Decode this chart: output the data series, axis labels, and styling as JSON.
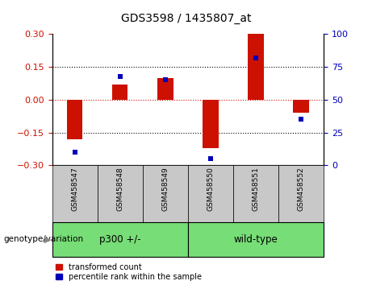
{
  "title": "GDS3598 / 1435807_at",
  "samples": [
    "GSM458547",
    "GSM458548",
    "GSM458549",
    "GSM458550",
    "GSM458551",
    "GSM458552"
  ],
  "red_bars": [
    -0.18,
    0.07,
    0.1,
    -0.22,
    0.3,
    -0.06
  ],
  "blue_dots": [
    10,
    68,
    65,
    5,
    82,
    35
  ],
  "ylim_left": [
    -0.3,
    0.3
  ],
  "ylim_right": [
    0,
    100
  ],
  "yticks_left": [
    -0.3,
    -0.15,
    0,
    0.15,
    0.3
  ],
  "yticks_right": [
    0,
    25,
    50,
    75,
    100
  ],
  "hlines_dotted": [
    -0.15,
    0.15
  ],
  "hline_red": 0,
  "groups": [
    {
      "label": "p300 +/-",
      "span": [
        0,
        3
      ]
    },
    {
      "label": "wild-type",
      "span": [
        3,
        6
      ]
    }
  ],
  "group_label": "genotype/variation",
  "bar_color": "#CC1100",
  "dot_color": "#0000BB",
  "bar_width": 0.35,
  "label_bg": "#C8C8C8",
  "group_color": "#77DD77",
  "legend_labels": [
    "transformed count",
    "percentile rank within the sample"
  ],
  "zero_line_color": "#CC1100"
}
